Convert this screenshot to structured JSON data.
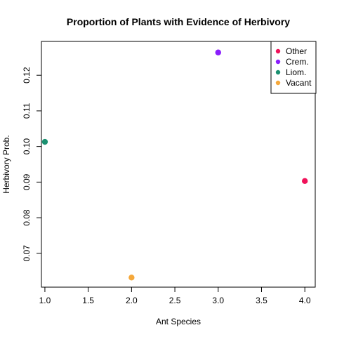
{
  "chart_data": {
    "type": "scatter",
    "title": "Proportion of Plants with Evidence of Herbivory",
    "xlabel": "Ant Species",
    "ylabel": "Herbivory Prob.",
    "xlim": [
      0.96,
      4.12
    ],
    "ylim": [
      0.0605,
      0.1295
    ],
    "xticks": [
      1.0,
      1.5,
      2.0,
      2.5,
      3.0,
      3.5,
      4.0
    ],
    "xtick_labels": [
      "1.0",
      "1.5",
      "2.0",
      "2.5",
      "3.0",
      "3.5",
      "4.0"
    ],
    "yticks": [
      0.07,
      0.08,
      0.09,
      0.1,
      0.11,
      0.12
    ],
    "ytick_labels": [
      "0.07",
      "0.08",
      "0.09",
      "0.10",
      "0.11",
      "0.12"
    ],
    "points": [
      {
        "name": "Liom.",
        "x": 1,
        "y": 0.1013,
        "color": "#1a9070"
      },
      {
        "name": "Vacant",
        "x": 2,
        "y": 0.0632,
        "color": "#f5a83b"
      },
      {
        "name": "Crem.",
        "x": 3,
        "y": 0.1264,
        "color": "#8a1efc"
      },
      {
        "name": "Other",
        "x": 4,
        "y": 0.0903,
        "color": "#f0125a"
      }
    ],
    "legend": {
      "position": "top-right",
      "entries": [
        {
          "label": "Other",
          "color": "#f0125a"
        },
        {
          "label": "Crem.",
          "color": "#8a1efc"
        },
        {
          "label": "Liom.",
          "color": "#1a9070"
        },
        {
          "label": "Vacant",
          "color": "#f5a83b"
        }
      ]
    }
  }
}
